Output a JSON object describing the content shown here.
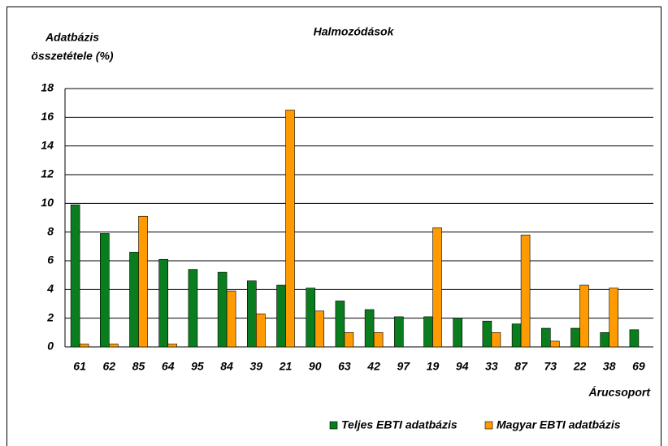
{
  "chart_data": {
    "type": "bar",
    "title": "Halmozódások",
    "y_label": [
      "Adatbázis",
      "összetétele (%)"
    ],
    "x_label": "Árucsoport",
    "categories": [
      "61",
      "62",
      "85",
      "64",
      "95",
      "84",
      "39",
      "21",
      "90",
      "63",
      "42",
      "97",
      "19",
      "94",
      "33",
      "87",
      "73",
      "22",
      "38",
      "69"
    ],
    "series": [
      {
        "name": "Teljes EBTI adatbázis",
        "color": "#0a7d1e",
        "values": [
          9.9,
          7.9,
          6.6,
          6.1,
          5.4,
          5.2,
          4.6,
          4.3,
          4.1,
          3.2,
          2.6,
          2.1,
          2.1,
          2.0,
          1.8,
          1.6,
          1.3,
          1.3,
          1.0,
          1.2
        ]
      },
      {
        "name": "Magyar EBTI adatbázis",
        "color": "#ff9a00",
        "values": [
          0.2,
          0.2,
          9.1,
          0.2,
          0,
          3.9,
          2.3,
          16.5,
          2.5,
          1.0,
          1.0,
          0,
          8.3,
          0,
          1.0,
          7.8,
          0.4,
          4.3,
          4.1,
          0
        ]
      }
    ],
    "ylim": [
      0,
      18
    ],
    "yticks": [
      0,
      2,
      4,
      6,
      8,
      10,
      12,
      14,
      16,
      18
    ],
    "grid": true,
    "legend": "bottom"
  }
}
